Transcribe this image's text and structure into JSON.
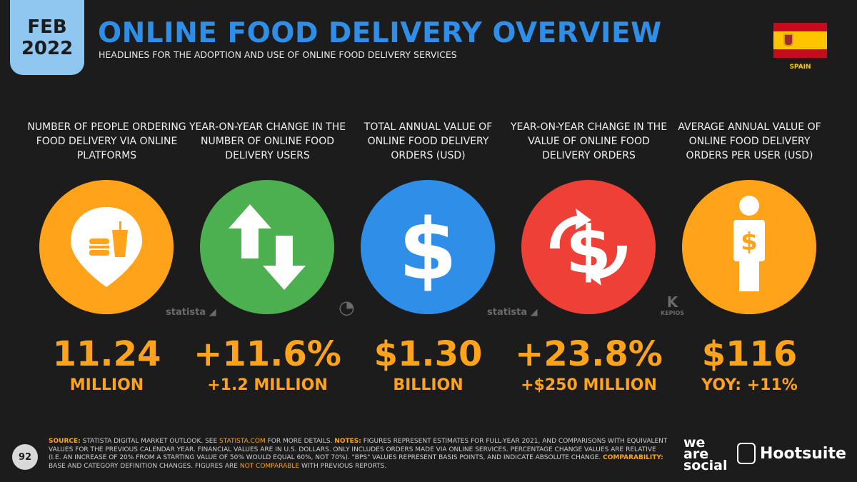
{
  "header": {
    "month": "FEB",
    "year": "2022",
    "title": "ONLINE FOOD DELIVERY OVERVIEW",
    "subtitle": "HEADLINES FOR THE ADOPTION AND USE OF ONLINE FOOD DELIVERY SERVICES",
    "country": "SPAIN"
  },
  "stats": [
    {
      "heading": "NUMBER OF PEOPLE ORDERING FOOD DELIVERY VIA ONLINE PLATFORMS",
      "value": "11.24",
      "sub": "MILLION",
      "icon": "food-location-pin-icon",
      "color": "#ffa31a"
    },
    {
      "heading": "YEAR-ON-YEAR CHANGE IN THE NUMBER OF ONLINE FOOD DELIVERY USERS",
      "value": "+11.6%",
      "sub": "+1.2 MILLION",
      "icon": "up-down-arrows-icon",
      "color": "#4caf50"
    },
    {
      "heading": "TOTAL ANNUAL VALUE OF ONLINE FOOD DELIVERY ORDERS (USD)",
      "value": "$1.30",
      "sub": "BILLION",
      "icon": "dollar-icon",
      "color": "#2f8fe8"
    },
    {
      "heading": "YEAR-ON-YEAR CHANGE IN THE VALUE OF ONLINE FOOD DELIVERY ORDERS",
      "value": "+23.8%",
      "sub": "+$250 MILLION",
      "icon": "dollar-change-icon",
      "color": "#ee4036"
    },
    {
      "heading": "AVERAGE ANNUAL VALUE OF ONLINE FOOD DELIVERY ORDERS PER USER (USD)",
      "value": "$116",
      "sub": "YOY: +11%",
      "icon": "person-dollar-icon",
      "color": "#ffa31a"
    }
  ],
  "watermarks": {
    "statista": "statista",
    "kepios": "KEPIOS"
  },
  "footer": {
    "page": "92",
    "source_label": "SOURCE:",
    "source_text": "STATISTA DIGITAL MARKET OUTLOOK. SEE",
    "source_link": "STATISTA.COM",
    "source_text2": "FOR MORE DETAILS.",
    "notes_label": "NOTES:",
    "notes_text": "FIGURES REPRESENT ESTIMATES FOR FULL-YEAR 2021, AND COMPARISONS WITH EQUIVALENT VALUES FOR THE PREVIOUS CALENDAR YEAR. FINANCIAL VALUES ARE IN U.S. DOLLARS. ONLY INCLUDES ORDERS MADE VIA ONLINE SERVICES. PERCENTAGE CHANGE VALUES ARE RELATIVE (I.E. AN INCREASE OF 20% FROM A STARTING VALUE OF 50% WOULD EQUAL 60%, NOT 70%). \"BPS\" VALUES REPRESENT BASIS POINTS, AND INDICATE ABSOLUTE CHANGE.",
    "comparability_label": "COMPARABILITY:",
    "comparability_text": "BASE AND CATEGORY DEFINITION CHANGES. FIGURES ARE",
    "not_comparable": "NOT COMPARABLE",
    "comparability_text2": "WITH PREVIOUS REPORTS.",
    "brand1": "we are social",
    "brand2": "Hootsuite"
  },
  "colors": {
    "accent": "#2f8fe8",
    "value": "#ffa31a",
    "background": "#1c1c1c"
  }
}
